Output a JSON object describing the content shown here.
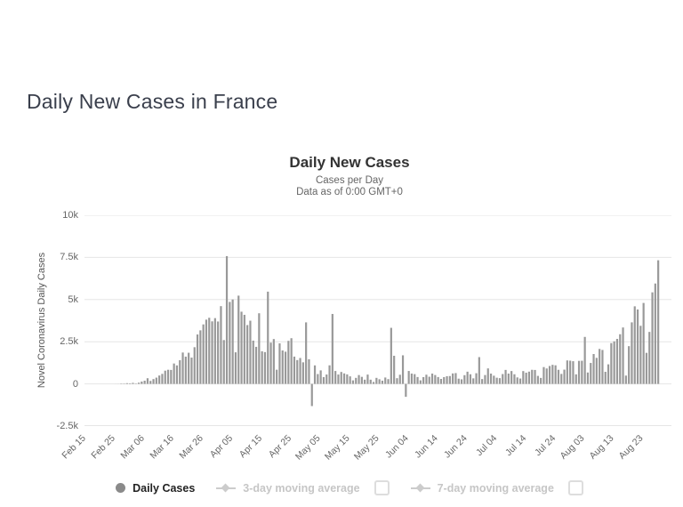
{
  "page": {
    "title": "Daily New Cases in France"
  },
  "chart_data": {
    "type": "bar",
    "title": "Daily New Cases",
    "subtitle1": "Cases per Day",
    "subtitle2": "Data as of 0:00 GMT+0",
    "ylabel": "Novel Coronavirus Daily Cases",
    "xlabel": "",
    "series_name": "Daily Cases",
    "ylim": [
      -2500,
      10000
    ],
    "y_ticks": [
      10000,
      7500,
      5000,
      2500,
      0,
      -2500
    ],
    "y_tick_labels": [
      "10k",
      "7.5k",
      "5k",
      "2.5k",
      "0",
      "-2.5k"
    ],
    "x_tick_labels": [
      "Feb 15",
      "Feb 25",
      "Mar 06",
      "Mar 16",
      "Mar 26",
      "Apr 05",
      "Apr 15",
      "Apr 25",
      "May 05",
      "May 15",
      "May 25",
      "Jun 04",
      "Jun 14",
      "Jun 24",
      "Jul 04",
      "Jul 14",
      "Jul 24",
      "Aug 03",
      "Aug 13",
      "Aug 23"
    ],
    "x_tick_indices": [
      0,
      10,
      20,
      30,
      40,
      50,
      60,
      70,
      80,
      90,
      100,
      110,
      120,
      130,
      140,
      150,
      160,
      170,
      180,
      190
    ],
    "grid": true,
    "legend_position": "bottom",
    "bar_color": "#999999",
    "grid_color": "#e6e6e6",
    "dates": [
      "Feb 15",
      "Feb 16",
      "Feb 17",
      "Feb 18",
      "Feb 19",
      "Feb 20",
      "Feb 21",
      "Feb 22",
      "Feb 23",
      "Feb 24",
      "Feb 25",
      "Feb 26",
      "Feb 27",
      "Feb 28",
      "Feb 29",
      "Mar 01",
      "Mar 02",
      "Mar 03",
      "Mar 04",
      "Mar 05",
      "Mar 06",
      "Mar 07",
      "Mar 08",
      "Mar 09",
      "Mar 10",
      "Mar 11",
      "Mar 12",
      "Mar 13",
      "Mar 14",
      "Mar 15",
      "Mar 16",
      "Mar 17",
      "Mar 18",
      "Mar 19",
      "Mar 20",
      "Mar 21",
      "Mar 22",
      "Mar 23",
      "Mar 24",
      "Mar 25",
      "Mar 26",
      "Mar 27",
      "Mar 28",
      "Mar 29",
      "Mar 30",
      "Mar 31",
      "Apr 01",
      "Apr 02",
      "Apr 03",
      "Apr 04",
      "Apr 05",
      "Apr 06",
      "Apr 07",
      "Apr 08",
      "Apr 09",
      "Apr 10",
      "Apr 11",
      "Apr 12",
      "Apr 13",
      "Apr 14",
      "Apr 15",
      "Apr 16",
      "Apr 17",
      "Apr 18",
      "Apr 19",
      "Apr 20",
      "Apr 21",
      "Apr 22",
      "Apr 23",
      "Apr 24",
      "Apr 25",
      "Apr 26",
      "Apr 27",
      "Apr 28",
      "Apr 29",
      "Apr 30",
      "May 01",
      "May 02",
      "May 03",
      "May 04",
      "May 05",
      "May 06",
      "May 07",
      "May 08",
      "May 09",
      "May 10",
      "May 11",
      "May 12",
      "May 13",
      "May 14",
      "May 15",
      "May 16",
      "May 17",
      "May 18",
      "May 19",
      "May 20",
      "May 21",
      "May 22",
      "May 23",
      "May 24",
      "May 25",
      "May 26",
      "May 27",
      "May 28",
      "May 29",
      "May 30",
      "May 31",
      "Jun 01",
      "Jun 02",
      "Jun 03",
      "Jun 04",
      "Jun 05",
      "Jun 06",
      "Jun 07",
      "Jun 08",
      "Jun 09",
      "Jun 10",
      "Jun 11",
      "Jun 12",
      "Jun 13",
      "Jun 14",
      "Jun 15",
      "Jun 16",
      "Jun 17",
      "Jun 18",
      "Jun 19",
      "Jun 20",
      "Jun 21",
      "Jun 22",
      "Jun 23",
      "Jun 24",
      "Jun 25",
      "Jun 26",
      "Jun 27",
      "Jun 28",
      "Jun 29",
      "Jun 30",
      "Jul 01",
      "Jul 02",
      "Jul 03",
      "Jul 04",
      "Jul 05",
      "Jul 06",
      "Jul 07",
      "Jul 08",
      "Jul 09",
      "Jul 10",
      "Jul 11",
      "Jul 12",
      "Jul 13",
      "Jul 14",
      "Jul 15",
      "Jul 16",
      "Jul 17",
      "Jul 18",
      "Jul 19",
      "Jul 20",
      "Jul 21",
      "Jul 22",
      "Jul 23",
      "Jul 24",
      "Jul 25",
      "Jul 26",
      "Jul 27",
      "Jul 28",
      "Jul 29",
      "Jul 30",
      "Jul 31",
      "Aug 01",
      "Aug 02",
      "Aug 03",
      "Aug 04",
      "Aug 05",
      "Aug 06",
      "Aug 07",
      "Aug 08",
      "Aug 09",
      "Aug 10",
      "Aug 11",
      "Aug 12",
      "Aug 13",
      "Aug 14",
      "Aug 15",
      "Aug 16",
      "Aug 17",
      "Aug 18",
      "Aug 19",
      "Aug 20",
      "Aug 21",
      "Aug 22",
      "Aug 23",
      "Aug 24",
      "Aug 25",
      "Aug 26",
      "Aug 27",
      "Aug 28"
    ],
    "values": [
      0,
      0,
      0,
      0,
      0,
      0,
      0,
      0,
      0,
      0,
      2,
      3,
      20,
      19,
      43,
      30,
      61,
      21,
      73,
      138,
      190,
      336,
      177,
      286,
      372,
      497,
      595,
      785,
      838,
      829,
      1210,
      1097,
      1404,
      1861,
      1617,
      1847,
      1559,
      2176,
      2931,
      3176,
      3528,
      3809,
      3922,
      3709,
      3900,
      3700,
      4611,
      2599,
      7578,
      4861,
      5006,
      1873,
      5233,
      4281,
      4096,
      3489,
      3748,
      2566,
      2198,
      4188,
      1934,
      1886,
      5470,
      2447,
      2659,
      841,
      2404,
      1982,
      1909,
      2553,
      2710,
      1619,
      1413,
      1537,
      1279,
      3648,
      1461,
      -1315,
      1097,
      583,
      802,
      404,
      556,
      1102,
      4147,
      766,
      556,
      708,
      622,
      563,
      447,
      209,
      358,
      524,
      418,
      251,
      553,
      250,
      115,
      358,
      276,
      191,
      379,
      283,
      3325,
      1668,
      338,
      542,
      1695,
      -766,
      767,
      611,
      579,
      407,
      211,
      403,
      545,
      425,
      611,
      526,
      407,
      296,
      403,
      458,
      467,
      621,
      641,
      310,
      272,
      517,
      724,
      571,
      330,
      633,
      1588,
      288,
      526,
      918,
      611,
      486,
      367,
      341,
      584,
      829,
      612,
      763,
      571,
      385,
      319,
      760,
      665,
      728,
      836,
      827,
      475,
      355,
      998,
      915,
      1062,
      1130,
      1103,
      836,
      592,
      846,
      1392,
      1377,
      1346,
      566,
      1366,
      1373,
      2786,
      675,
      1242,
      1771,
      1544,
      2073,
      2012,
      716,
      1160,
      2419,
      2524,
      2669,
      2945,
      3346,
      493,
      2238,
      3650,
      4600,
      4415,
      3445,
      4800,
      1842,
      3082,
      5429,
      5953,
      7331
    ]
  },
  "legend": {
    "daily_cases_label": "Daily Cases",
    "ma3_label": "3-day moving average",
    "ma7_label": "7-day moving average",
    "ma3_enabled": false,
    "ma7_enabled": false,
    "active_marker_color": "#8a8a8a",
    "disabled_color": "#cccccc"
  },
  "colors": {
    "page_title": "#3a3f4c",
    "chart_title": "#333333",
    "subtitle": "#666666",
    "axis_labels": "#666666",
    "bars": "#999999",
    "gridlines": "#e6e6e6"
  }
}
